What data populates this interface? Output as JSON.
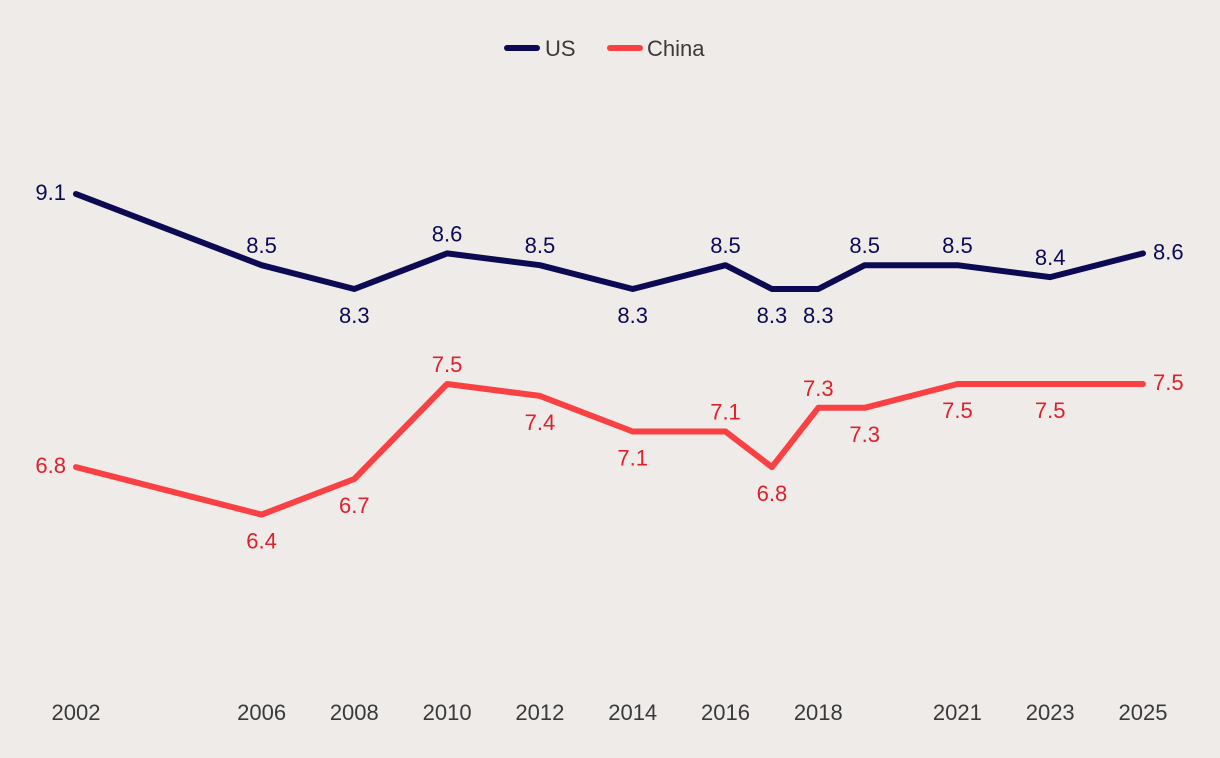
{
  "chart_data": {
    "type": "line",
    "title": "",
    "xlabel": "",
    "ylabel": "",
    "grid": false,
    "legend_position": "top-center",
    "ylim": [
      6,
      9.5
    ],
    "x": [
      2002,
      2006,
      2008,
      2010,
      2012,
      2014,
      2016,
      2017,
      2018,
      2019,
      2021,
      2023,
      2025
    ],
    "x_tick_labels": [
      "2002",
      "2006",
      "2008",
      "2010",
      "2012",
      "2014",
      "2016",
      "2018",
      "2021",
      "2023",
      "2025"
    ],
    "x_tick_values": [
      2002,
      2006,
      2008,
      2010,
      2012,
      2014,
      2016,
      2018,
      2021,
      2023,
      2025
    ],
    "series": [
      {
        "name": "US",
        "color": "#0b0a52",
        "label_color": "#0b0a52",
        "values": [
          9.1,
          8.5,
          8.3,
          8.6,
          8.5,
          8.3,
          8.5,
          8.3,
          8.3,
          8.5,
          8.5,
          8.4,
          8.6
        ],
        "labels": [
          "9.1",
          "8.5",
          "8.3",
          "8.6",
          "8.5",
          "8.3",
          "8.5",
          "8.3",
          "8.3",
          "8.5",
          "8.5",
          "8.4",
          "8.6"
        ],
        "label_pos": [
          "left",
          "above",
          "below",
          "above",
          "above",
          "below",
          "above",
          "below",
          "below",
          "above",
          "above",
          "above",
          "right"
        ]
      },
      {
        "name": "China",
        "color": "#f94144",
        "label_color": "#e0202a",
        "values": [
          6.8,
          6.4,
          6.7,
          7.5,
          7.4,
          7.1,
          7.1,
          6.8,
          7.3,
          7.3,
          7.5,
          7.5,
          7.5
        ],
        "labels": [
          "6.8",
          "6.4",
          "6.7",
          "7.5",
          "7.4",
          "7.1",
          "7.1",
          "6.8",
          "7.3",
          "7.3",
          "7.5",
          "7.5",
          "7.5"
        ],
        "label_pos": [
          "left",
          "below",
          "below",
          "above",
          "below",
          "below",
          "above",
          "below",
          "above",
          "below",
          "below",
          "below",
          "right"
        ]
      }
    ]
  }
}
